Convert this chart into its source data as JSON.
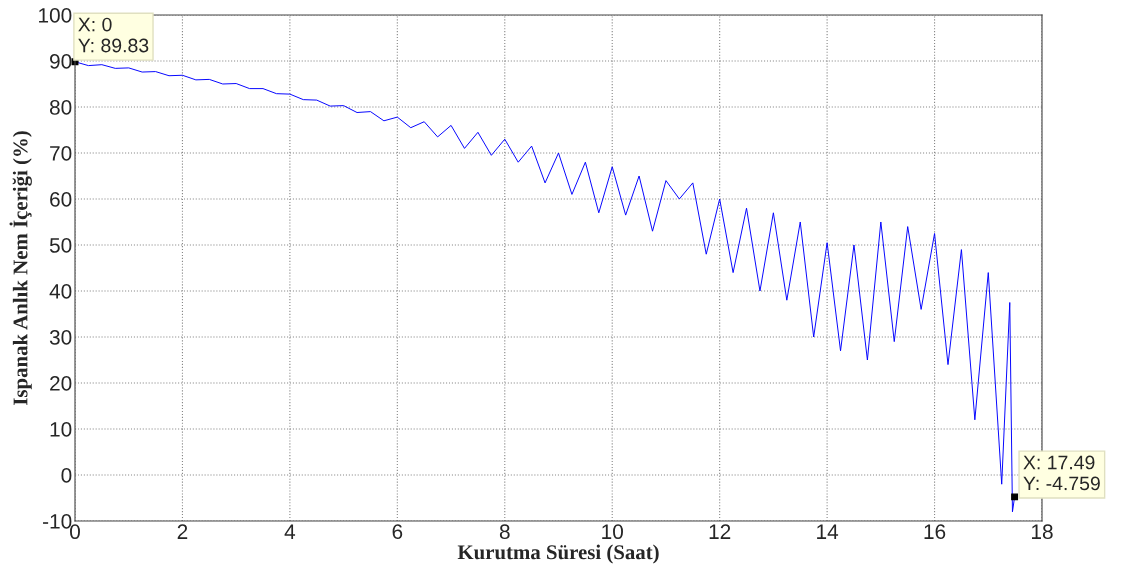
{
  "chart_data": {
    "type": "line",
    "xlabel": "Kurutma Süresi (Saat)",
    "ylabel": "Ispanak Anlık Nem İçeriği (%)",
    "x": [
      0,
      0.25,
      0.5,
      0.75,
      1.0,
      1.25,
      1.5,
      1.75,
      2.0,
      2.25,
      2.5,
      2.75,
      3.0,
      3.25,
      3.5,
      3.75,
      4.0,
      4.25,
      4.5,
      4.75,
      5.0,
      5.25,
      5.5,
      5.75,
      6.0,
      6.25,
      6.5,
      6.75,
      7.0,
      7.25,
      7.5,
      7.75,
      8.0,
      8.25,
      8.5,
      8.75,
      9.0,
      9.25,
      9.5,
      9.75,
      10.0,
      10.25,
      10.5,
      10.75,
      11.0,
      11.25,
      11.5,
      11.75,
      12.0,
      12.25,
      12.5,
      12.75,
      13.0,
      13.25,
      13.5,
      13.75,
      14.0,
      14.25,
      14.5,
      14.75,
      15.0,
      15.25,
      15.5,
      15.75,
      16.0,
      16.25,
      16.5,
      16.75,
      17.0,
      17.25,
      17.4,
      17.45,
      17.49
    ],
    "series": [
      {
        "color": "#0000ff",
        "values": [
          89.83,
          89.0,
          89.2,
          88.4,
          88.5,
          87.6,
          87.7,
          86.8,
          86.9,
          85.9,
          86.0,
          85.0,
          85.1,
          84.0,
          84.0,
          82.9,
          82.8,
          81.6,
          81.5,
          80.2,
          80.3,
          78.8,
          79.0,
          77.0,
          77.8,
          75.5,
          76.8,
          73.5,
          76.0,
          71.0,
          74.5,
          69.5,
          73.0,
          68.0,
          71.5,
          63.5,
          70.0,
          61.0,
          68.0,
          57.0,
          67.0,
          56.5,
          65.0,
          53.0,
          64.0,
          60.0,
          63.5,
          48.0,
          60.0,
          44.0,
          58.0,
          40.0,
          57.0,
          38.0,
          55.0,
          30.0,
          50.5,
          27.0,
          50.0,
          25.0,
          55.0,
          29.0,
          54.0,
          36.0,
          52.5,
          24.0,
          49.0,
          12.0,
          44.0,
          -2.0,
          37.5,
          -8.0,
          -4.759
        ]
      }
    ],
    "xlim": [
      0,
      18
    ],
    "xticks": [
      0,
      2,
      4,
      6,
      8,
      10,
      12,
      14,
      16,
      18
    ],
    "ylim": [
      -10,
      100
    ],
    "yticks": [
      -10,
      0,
      10,
      20,
      30,
      40,
      50,
      60,
      70,
      80,
      90,
      100
    ],
    "grid": true,
    "line_style": "solid",
    "marker": "none",
    "annotations": [
      {
        "text": "X: 0\nY: 89.83",
        "x": 0,
        "y": 89.83
      },
      {
        "text": "X: 17.49\nY: -4.759",
        "x": 17.49,
        "y": -4.759
      }
    ]
  }
}
